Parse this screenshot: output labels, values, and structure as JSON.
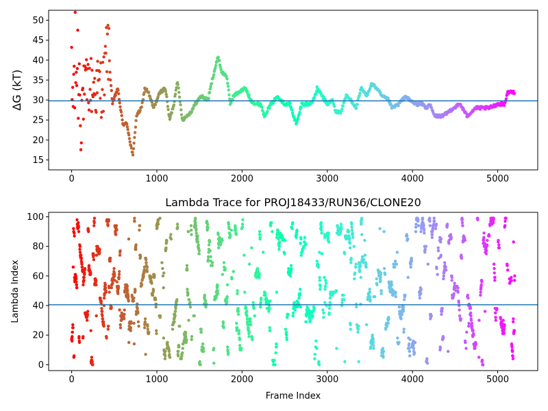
{
  "chart_data": [
    {
      "type": "scatter",
      "title": "",
      "xlabel": "",
      "ylabel": "ΔG (kT)",
      "xlim": [
        -270,
        5470
      ],
      "ylim": [
        12.5,
        52.5
      ],
      "xticks": [
        0,
        1000,
        2000,
        3000,
        4000,
        5000
      ],
      "yticks": [
        15,
        20,
        25,
        30,
        35,
        40,
        45,
        50
      ],
      "hline": 29.8,
      "hline_color": "#1f77b4",
      "colormap": "rainbow",
      "frames": 5200,
      "trace": [
        [
          0,
          29
        ],
        [
          60,
          40
        ],
        [
          120,
          30
        ],
        [
          200,
          34
        ],
        [
          300,
          33
        ],
        [
          380,
          34
        ],
        [
          420,
          45
        ],
        [
          480,
          29
        ],
        [
          540,
          33
        ],
        [
          600,
          24
        ],
        [
          650,
          24
        ],
        [
          690,
          19
        ],
        [
          720,
          16
        ],
        [
          760,
          26
        ],
        [
          820,
          28
        ],
        [
          860,
          33
        ],
        [
          900,
          32
        ],
        [
          960,
          28
        ],
        [
          1040,
          32
        ],
        [
          1100,
          33
        ],
        [
          1150,
          25
        ],
        [
          1200,
          29
        ],
        [
          1240,
          35
        ],
        [
          1300,
          25
        ],
        [
          1400,
          27
        ],
        [
          1450,
          29
        ],
        [
          1520,
          31
        ],
        [
          1600,
          30
        ],
        [
          1660,
          36
        ],
        [
          1720,
          41
        ],
        [
          1760,
          37
        ],
        [
          1820,
          36
        ],
        [
          1860,
          29
        ],
        [
          1900,
          31
        ],
        [
          1960,
          32
        ],
        [
          2040,
          33
        ],
        [
          2100,
          30
        ],
        [
          2160,
          29
        ],
        [
          2220,
          29
        ],
        [
          2260,
          26
        ],
        [
          2340,
          29
        ],
        [
          2420,
          31
        ],
        [
          2500,
          29
        ],
        [
          2560,
          29
        ],
        [
          2620,
          25
        ],
        [
          2640,
          24
        ],
        [
          2700,
          29
        ],
        [
          2800,
          29
        ],
        [
          2860,
          31
        ],
        [
          2880,
          33
        ],
        [
          2940,
          31
        ],
        [
          3000,
          29
        ],
        [
          3060,
          30
        ],
        [
          3100,
          27
        ],
        [
          3160,
          27
        ],
        [
          3220,
          31
        ],
        [
          3280,
          30
        ],
        [
          3340,
          28
        ],
        [
          3400,
          33
        ],
        [
          3460,
          31
        ],
        [
          3520,
          34
        ],
        [
          3580,
          33
        ],
        [
          3640,
          31
        ],
        [
          3720,
          30
        ],
        [
          3760,
          28
        ],
        [
          3840,
          29
        ],
        [
          3920,
          31
        ],
        [
          3960,
          30
        ],
        [
          4040,
          29
        ],
        [
          4120,
          29
        ],
        [
          4160,
          28
        ],
        [
          4200,
          29
        ],
        [
          4260,
          26
        ],
        [
          4360,
          26
        ],
        [
          4420,
          27
        ],
        [
          4480,
          28
        ],
        [
          4560,
          29
        ],
        [
          4640,
          26
        ],
        [
          4740,
          28
        ],
        [
          4900,
          28
        ],
        [
          5000,
          29
        ],
        [
          5080,
          29
        ],
        [
          5120,
          32
        ],
        [
          5200,
          32
        ]
      ]
    },
    {
      "type": "scatter",
      "title": "Lambda Trace for PROJ18433/RUN36/CLONE20",
      "xlabel": "Frame Index",
      "ylabel": "Lambda Index",
      "xlim": [
        -270,
        5470
      ],
      "ylim": [
        -4,
        103
      ],
      "xticks": [
        0,
        1000,
        2000,
        3000,
        4000,
        5000
      ],
      "yticks": [
        0,
        20,
        40,
        60,
        80,
        100
      ],
      "hline": 40.5,
      "hline_color": "#1f77b4",
      "colormap": "rainbow",
      "frames": 5200,
      "lambda_range": [
        0,
        99
      ]
    }
  ]
}
